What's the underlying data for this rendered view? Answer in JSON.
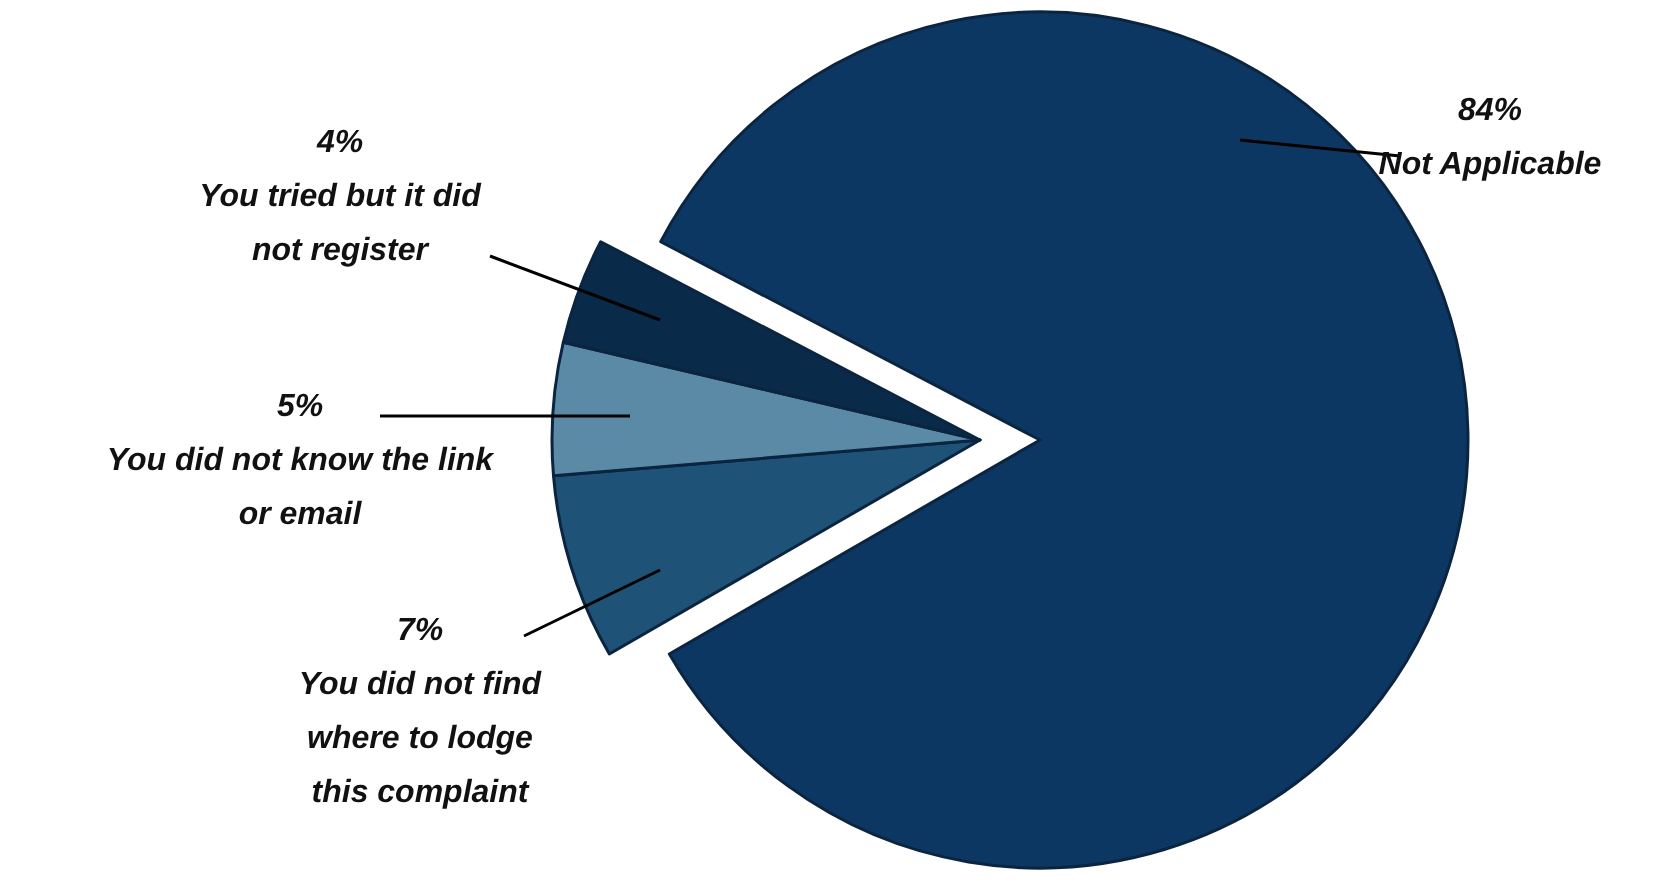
{
  "chart_data": {
    "type": "pie",
    "categories": [
      "Not Applicable",
      "You did not find where to lodge this complaint",
      "You did not know the link or email",
      "You tried but it did not register"
    ],
    "values": [
      84,
      7,
      5,
      4
    ],
    "colors": [
      "#0d3763",
      "#1f5277",
      "#5b8aa6",
      "#0a2a4a"
    ],
    "value_labels": [
      "84%",
      "7%",
      "5%",
      "4%"
    ]
  }
}
